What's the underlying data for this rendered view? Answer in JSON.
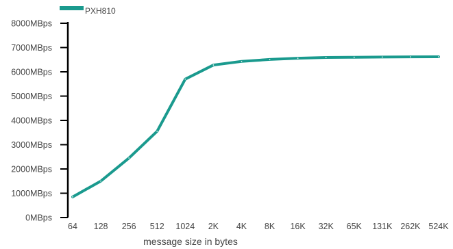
{
  "chart_data": {
    "type": "line",
    "title": "",
    "xlabel": "message size in bytes",
    "ylabel": "",
    "categories": [
      "64",
      "128",
      "256",
      "512",
      "1024",
      "2K",
      "4K",
      "8K",
      "16K",
      "32K",
      "65K",
      "131K",
      "262K",
      "524K"
    ],
    "series": [
      {
        "name": "PXH810",
        "color": "#1a9a8e",
        "values": [
          850,
          1500,
          2450,
          3550,
          5700,
          6280,
          6430,
          6510,
          6560,
          6590,
          6600,
          6610,
          6615,
          6620
        ]
      }
    ],
    "ylim": [
      0,
      8000
    ],
    "yticks": [
      {
        "value": 0,
        "label": "0MBps"
      },
      {
        "value": 1000,
        "label": "1000MBps"
      },
      {
        "value": 2000,
        "label": "2000MBps"
      },
      {
        "value": 3000,
        "label": "3000MBps"
      },
      {
        "value": 4000,
        "label": "4000MBps"
      },
      {
        "value": 5000,
        "label": "5000MBps"
      },
      {
        "value": 6000,
        "label": "6000MBps"
      },
      {
        "value": 7000,
        "label": "7000MBps"
      },
      {
        "value": 8000,
        "label": "8000MBps"
      }
    ],
    "grid": false,
    "legend_position": "top-left"
  }
}
